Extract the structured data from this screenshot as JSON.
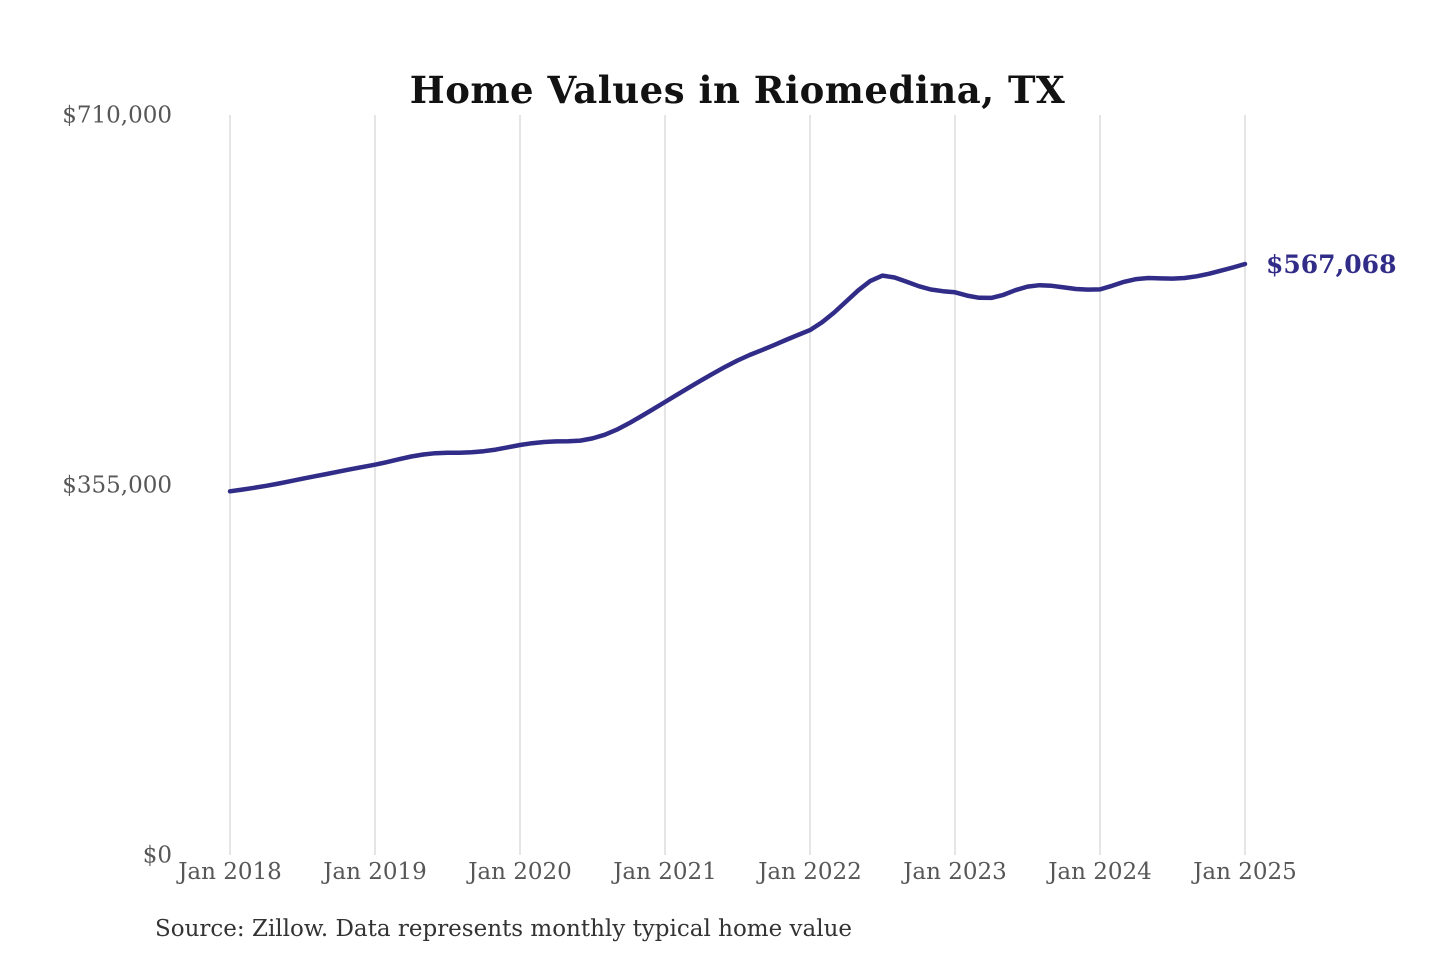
{
  "chart": {
    "line_color": "#312c87",
    "gridline_color": "#cbcbcb",
    "axis_label_color": "#575757",
    "title_color": "#121212",
    "end_label_color": "#312c87"
  },
  "chart_data": {
    "type": "line",
    "title": "Home Values in Riomedina, TX",
    "source_note": "Source: Zillow. Data represents monthly typical home value",
    "end_label": "$567,068",
    "latest_value": 567068,
    "frequency": "monthly",
    "x_start": "Jan 2018",
    "x_end": "Jan 2025",
    "x_tick_labels": [
      "Jan 2018",
      "Jan 2019",
      "Jan 2020",
      "Jan 2021",
      "Jan 2022",
      "Jan 2023",
      "Jan 2024",
      "Jan 2025"
    ],
    "y_tick_labels": [
      "$710,000",
      "$355,000",
      "$0"
    ],
    "y_ticks": [
      710000,
      355000,
      0
    ],
    "ylim": [
      0,
      710000
    ],
    "grid": "vertical-only",
    "legend": "none",
    "series": [
      {
        "name": "Typical home value",
        "values": [
          349000,
          350600,
          352300,
          354200,
          356300,
          358600,
          361000,
          363300,
          365600,
          367900,
          370200,
          372400,
          374500,
          377000,
          379800,
          382300,
          384300,
          385500,
          385900,
          385900,
          386400,
          387400,
          389000,
          391200,
          393400,
          395100,
          396300,
          396800,
          396900,
          397600,
          399700,
          403200,
          408100,
          414100,
          420700,
          427600,
          434600,
          441600,
          448600,
          455500,
          462100,
          468500,
          474500,
          479700,
          484300,
          489100,
          494100,
          498900,
          503600,
          511200,
          520500,
          531200,
          541800,
          550800,
          555900,
          554100,
          550100,
          545700,
          542600,
          540900,
          539900,
          536700,
          534600,
          534500,
          537400,
          541900,
          545400,
          546700,
          546100,
          544600,
          543100,
          542500,
          542700,
          546100,
          550000,
          552600,
          553600,
          553200,
          553000,
          553600,
          555200,
          557600,
          560600,
          563700,
          567068
        ]
      }
    ]
  }
}
